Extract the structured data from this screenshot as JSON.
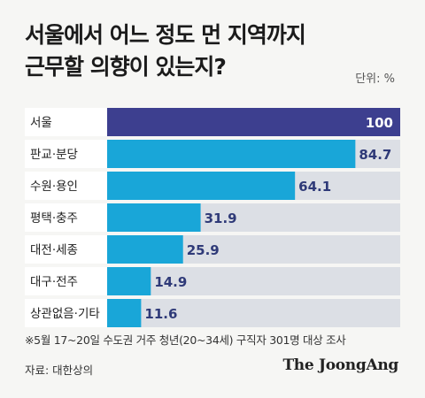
{
  "title_line1": "서울에서 어느 정도 먼 지역까지",
  "title_line2": "근무할 의향이 있는지?",
  "unit_label": "단위: %",
  "note": "※5월 17~20일 수도권 거주 청년(20~34세) 구직자 301명 대상 조사",
  "source": "자료: 대한상의",
  "logo_text": "The JoongAng",
  "colors": {
    "highlight": "#3d3f8f",
    "bar": "#19a6d8",
    "track": "#dcdfe5",
    "label_inside": "#ffffff",
    "label_outside": "#2f3a78"
  },
  "chart_data": {
    "type": "bar",
    "orientation": "horizontal",
    "categories": [
      "서울",
      "판교·분당",
      "수원·용인",
      "평택·충주",
      "대전·세종",
      "대구·전주",
      "상관없음·기타"
    ],
    "values": [
      100,
      84.7,
      64.1,
      31.9,
      25.9,
      14.9,
      11.6
    ],
    "value_labels": [
      "100",
      "84.7",
      "64.1",
      "31.9",
      "25.9",
      "14.9",
      "11.6"
    ],
    "xlim": [
      0,
      100
    ]
  }
}
